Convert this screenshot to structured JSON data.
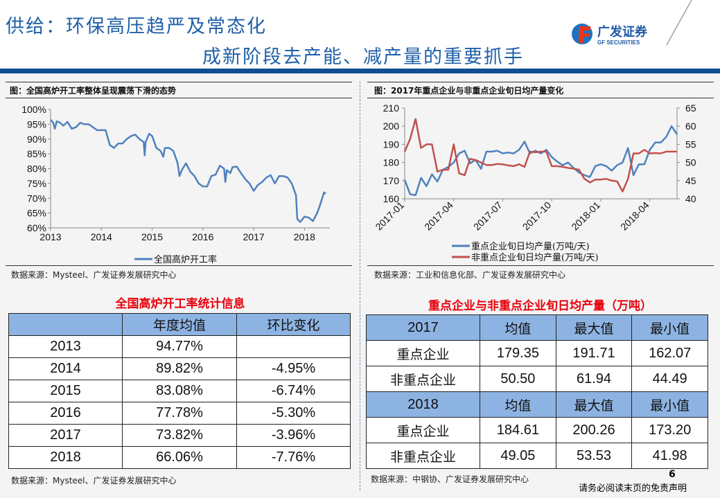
{
  "header": {
    "title_line1": "供给：环保高压趋严及常态化",
    "title_line2": "成新阶段去产能、减产量的重要抓手",
    "logo_cn": "广发证券",
    "logo_en": "GF SECURITIES",
    "colors": {
      "title": "#1f5fa8",
      "bar": "#0f4e92"
    }
  },
  "left": {
    "figure_title": "图：全国高炉开工率整体呈现震荡下滑的态势",
    "source": "数据来源：Mysteel、广发证券发展研究中心",
    "table_title": "全国高炉开工率统计信息",
    "table": {
      "headers": [
        "",
        "年度均值",
        "环比变化"
      ],
      "rows": [
        [
          "2013",
          "94.77%",
          ""
        ],
        [
          "2014",
          "89.82%",
          "-4.95%"
        ],
        [
          "2015",
          "83.08%",
          "-6.74%"
        ],
        [
          "2016",
          "77.78%",
          "-5.30%"
        ],
        [
          "2017",
          "73.82%",
          "-3.96%"
        ],
        [
          "2018",
          "66.06%",
          "-7.76%"
        ]
      ]
    },
    "table_source": "数据来源：Mysteel、广发证券发展研究中心"
  },
  "right": {
    "figure_title": "图：2017年重点企业与非重点企业旬日均产量变化",
    "source": "数据来源：工业和信息化部、广发证券发展研究中心",
    "table_title": "重点企业与非重点企业旬日均产量（万吨）",
    "table": {
      "rows": [
        {
          "header": true,
          "cells": [
            "2017",
            "均值",
            "最大值",
            "最小值"
          ]
        },
        {
          "cells": [
            "重点企业",
            "179.35",
            "191.71",
            "162.07"
          ]
        },
        {
          "cells": [
            "非重点企业",
            "50.50",
            "61.94",
            "44.49"
          ]
        },
        {
          "header": true,
          "cells": [
            "2018",
            "均值",
            "最大值",
            "最小值"
          ]
        },
        {
          "cells": [
            "重点企业",
            "184.61",
            "200.26",
            "173.20"
          ]
        },
        {
          "cells": [
            "非重点企业",
            "49.05",
            "53.53",
            "41.98"
          ]
        }
      ]
    },
    "table_source": "数据来源：中钢协、广发证券发展研究中心"
  },
  "footer": {
    "page": "6",
    "disclaimer": "请务必阅读末页的免责声明"
  },
  "chart_data": [
    {
      "type": "line",
      "ylim": [
        60,
        100
      ],
      "yticks": [
        "60%",
        "65%",
        "70%",
        "75%",
        "80%",
        "85%",
        "90%",
        "95%",
        "100%"
      ],
      "xticks": [
        "2013",
        "2014",
        "2015",
        "2016",
        "2017",
        "2018"
      ],
      "xlim": [
        "2013-01",
        "2018-07"
      ],
      "grid": false,
      "legend_placement": "bottom",
      "color": "#4f81bd",
      "series": [
        {
          "name": "全国高炉开工率",
          "points": [
            [
              "2013-01-01",
              96.5
            ],
            [
              "2013-01-20",
              95.5
            ],
            [
              "2013-02-01",
              93.5
            ],
            [
              "2013-02-15",
              96
            ],
            [
              "2013-03-10",
              95.5
            ],
            [
              "2013-04-01",
              94.5
            ],
            [
              "2013-05-01",
              95.8
            ],
            [
              "2013-06-01",
              93.5
            ],
            [
              "2013-07-01",
              94
            ],
            [
              "2013-08-01",
              95.5
            ],
            [
              "2013-09-01",
              95
            ],
            [
              "2013-10-01",
              95
            ],
            [
              "2013-11-01",
              94
            ],
            [
              "2013-12-01",
              93
            ],
            [
              "2014-01-01",
              93
            ],
            [
              "2014-02-01",
              93
            ],
            [
              "2014-03-01",
              88
            ],
            [
              "2014-04-01",
              87
            ],
            [
              "2014-05-01",
              88.5
            ],
            [
              "2014-06-01",
              88.5
            ],
            [
              "2014-07-01",
              90
            ],
            [
              "2014-08-01",
              91
            ],
            [
              "2014-09-01",
              91.5
            ],
            [
              "2014-10-01",
              90
            ],
            [
              "2014-11-01",
              89
            ],
            [
              "2014-11-08",
              84.5
            ],
            [
              "2014-11-15",
              89
            ],
            [
              "2014-12-10",
              91.8
            ],
            [
              "2015-01-01",
              91
            ],
            [
              "2015-02-01",
              87
            ],
            [
              "2015-03-01",
              86
            ],
            [
              "2015-03-20",
              84
            ],
            [
              "2015-04-01",
              87
            ],
            [
              "2015-05-01",
              87
            ],
            [
              "2015-06-01",
              86
            ],
            [
              "2015-07-01",
              82
            ],
            [
              "2015-07-15",
              77.5
            ],
            [
              "2015-08-01",
              79.5
            ],
            [
              "2015-09-01",
              81.8
            ],
            [
              "2015-10-01",
              79
            ],
            [
              "2015-11-01",
              77.5
            ],
            [
              "2015-12-01",
              75
            ],
            [
              "2016-01-01",
              74
            ],
            [
              "2016-02-01",
              74
            ],
            [
              "2016-03-01",
              77.5
            ],
            [
              "2016-04-01",
              78
            ],
            [
              "2016-05-01",
              81
            ],
            [
              "2016-06-01",
              80
            ],
            [
              "2016-06-10",
              75.5
            ],
            [
              "2016-06-20",
              79.5
            ],
            [
              "2016-07-15",
              78.5
            ],
            [
              "2016-08-01",
              80.5
            ],
            [
              "2016-09-01",
              80.7
            ],
            [
              "2016-10-01",
              78.5
            ],
            [
              "2016-11-01",
              76.5
            ],
            [
              "2016-12-01",
              75
            ],
            [
              "2017-01-01",
              72.5
            ],
            [
              "2017-02-01",
              74.5
            ],
            [
              "2017-03-01",
              75.5
            ],
            [
              "2017-04-01",
              77
            ],
            [
              "2017-05-01",
              77.8
            ],
            [
              "2017-06-01",
              75
            ],
            [
              "2017-07-01",
              77.5
            ],
            [
              "2017-08-01",
              77.5
            ],
            [
              "2017-09-01",
              77
            ],
            [
              "2017-10-01",
              75
            ],
            [
              "2017-11-01",
              71
            ],
            [
              "2017-11-10",
              63
            ],
            [
              "2017-12-01",
              62
            ],
            [
              "2018-01-01",
              63.8
            ],
            [
              "2018-02-01",
              63.5
            ],
            [
              "2018-03-01",
              62.3
            ],
            [
              "2018-04-01",
              65
            ],
            [
              "2018-04-20",
              67.5
            ],
            [
              "2018-05-20",
              72
            ],
            [
              "2018-06-01",
              71.5
            ]
          ]
        }
      ]
    },
    {
      "type": "line",
      "xticks": [
        "2017-01",
        "2017-04",
        "2017-07",
        "2017-10",
        "2018-01",
        "2018-04"
      ],
      "xtick_index": [
        0,
        9,
        18,
        27,
        36,
        45
      ],
      "y_left": {
        "lim": [
          160,
          210
        ],
        "ticks": [
          "160",
          "170",
          "180",
          "190",
          "200",
          "210"
        ]
      },
      "y_right": {
        "lim": [
          40,
          65
        ],
        "ticks": [
          "40",
          "45",
          "50",
          "55",
          "60",
          "65"
        ]
      },
      "grid": false,
      "legend_placement": "bottom",
      "series": [
        {
          "name": "重点企业旬日均产量(万吨/天)",
          "axis": "left",
          "color": "#4f81bd",
          "values": [
            170.5,
            162.5,
            162,
            171.5,
            167,
            173.5,
            169.5,
            176,
            177.5,
            180,
            185,
            186.5,
            179.5,
            181.5,
            176.5,
            186,
            186,
            186.5,
            185,
            185.5,
            185,
            187,
            191.5,
            185,
            186.5,
            185,
            187,
            183,
            180.5,
            178.5,
            180,
            177,
            174.5,
            173,
            172,
            178,
            179,
            178,
            175.5,
            178.5,
            180,
            188,
            173,
            179,
            179,
            187,
            191,
            191,
            194,
            200,
            195.5
          ]
        },
        {
          "name": "非重点企业旬日均产量(万吨/天)",
          "axis": "right",
          "color": "#c0504d",
          "values": [
            53,
            56.5,
            62,
            54,
            55,
            55,
            47.5,
            48,
            48,
            55,
            47,
            46.5,
            51,
            50.7,
            50,
            49.3,
            49.3,
            49.6,
            49.5,
            49.2,
            49,
            49.5,
            48.8,
            53,
            52.8,
            53,
            53,
            49,
            49,
            48.8,
            48.5,
            48.3,
            48,
            45.5,
            44.5,
            45.3,
            45.3,
            45.5,
            45,
            44.8,
            42,
            45.5,
            52.5,
            52.5,
            53.5,
            52.5,
            52.6,
            52.5,
            53,
            53,
            53
          ]
        }
      ]
    }
  ]
}
